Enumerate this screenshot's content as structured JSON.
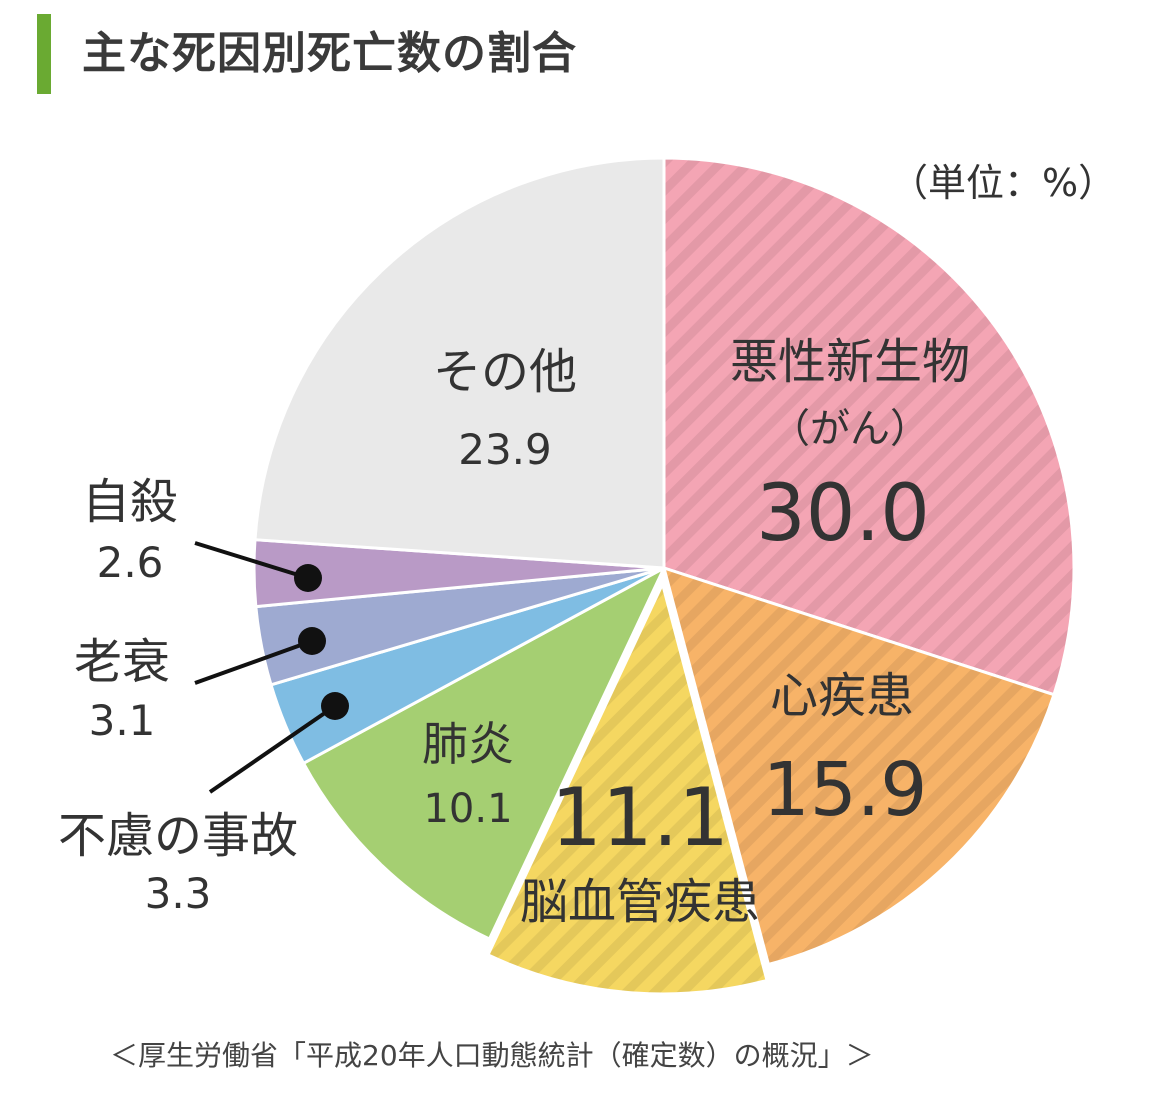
{
  "title": "主な死因別死亡数の割合",
  "unit_label": "（単位：%）",
  "source": "＜厚生労働省「平成20年人口動態統計（確定数）の概況」＞",
  "colors": {
    "title_bar": "#6aaa32"
  },
  "chart_data": {
    "type": "pie",
    "title": "主な死因別死亡数の割合",
    "unit": "%",
    "slices": [
      {
        "name": "悪性新生物",
        "sub": "（がん）",
        "value": 30.0,
        "label": "30.0",
        "color": "#f4a5b4",
        "hatch": true
      },
      {
        "name": "心疾患",
        "value": 15.9,
        "label": "15.9",
        "color": "#f7b368",
        "hatch": true
      },
      {
        "name": "脳血管疾患",
        "value": 11.1,
        "label": "11.1",
        "color": "#f5d761",
        "hatch": true,
        "exploded": true
      },
      {
        "name": "肺炎",
        "value": 10.1,
        "label": "10.1",
        "color": "#a5cf72",
        "hatch": false
      },
      {
        "name": "不慮の事故",
        "value": 3.3,
        "label": "3.3",
        "color": "#7fbde3",
        "hatch": false
      },
      {
        "name": "老衰",
        "value": 3.1,
        "label": "3.1",
        "color": "#9eaad1",
        "hatch": false
      },
      {
        "name": "自殺",
        "value": 2.6,
        "label": "2.6",
        "color": "#b99ac6",
        "hatch": false
      },
      {
        "name": "その他",
        "value": 23.9,
        "label": "23.9",
        "color": "#e9e9e9",
        "hatch": false
      }
    ]
  }
}
